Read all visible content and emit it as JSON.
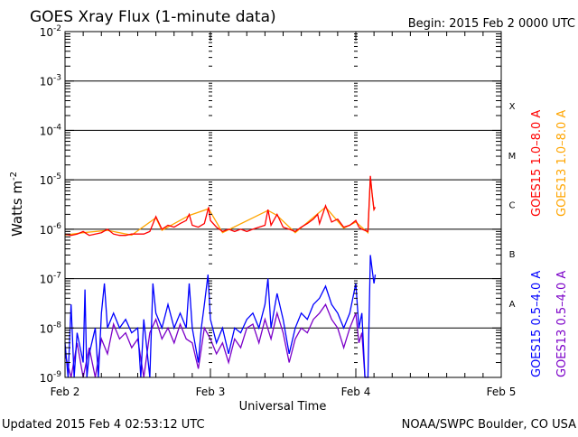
{
  "chart_data": {
    "type": "line",
    "title": "GOES Xray Flux (1-minute data)",
    "begin_label": "Begin:  2015 Feb 2 0000 UTC",
    "xlabel": "Universal Time",
    "ylabel": "Watts m",
    "ylabel_sup": "-2",
    "x_unit": "hours since 2015 Feb 2 0000 UTC",
    "xlim": [
      0,
      72
    ],
    "ylim": [
      1e-09,
      0.01
    ],
    "yscale": "log",
    "x_ticks": [
      {
        "v": 0,
        "label": "Feb 2"
      },
      {
        "v": 24,
        "label": "Feb 3"
      },
      {
        "v": 48,
        "label": "Feb 4"
      },
      {
        "v": 72,
        "label": "Feb 5"
      }
    ],
    "y_ticks": [
      {
        "exp": -2
      },
      {
        "exp": -3
      },
      {
        "exp": -4
      },
      {
        "exp": -5
      },
      {
        "exp": -6
      },
      {
        "exp": -7
      },
      {
        "exp": -8
      },
      {
        "exp": -9
      }
    ],
    "flare_classes": [
      {
        "label": "X",
        "exp": -4
      },
      {
        "label": "M",
        "exp": -5
      },
      {
        "label": "C",
        "exp": -6
      },
      {
        "label": "B",
        "exp": -7
      },
      {
        "label": "A",
        "exp": -8
      }
    ],
    "series": [
      {
        "name": "GOES13 1.0-8.0 A",
        "color": "#ffa500",
        "points": [
          [
            0,
            7.6e-07
          ],
          [
            3,
            8.5e-07
          ],
          [
            7,
            9.5e-07
          ],
          [
            11,
            7.6e-07
          ],
          [
            15,
            1.7e-06
          ],
          [
            16,
            9.5e-07
          ],
          [
            20.5,
            1.9e-06
          ],
          [
            23.7,
            2.6e-06
          ],
          [
            26,
            8.5e-07
          ],
          [
            33.5,
            2.4e-06
          ],
          [
            35,
            1.9e-06
          ],
          [
            38,
            8.5e-07
          ],
          [
            43,
            2.8e-06
          ],
          [
            46,
            1.05e-06
          ],
          [
            48,
            1.4e-06
          ],
          [
            50,
            8.5e-07
          ],
          [
            50.4,
            1.1e-05
          ],
          [
            51,
            2.4e-06
          ]
        ]
      },
      {
        "name": "GOES15 1.0-8.0 A",
        "color": "#ff0000",
        "points": [
          [
            0,
            8e-07
          ],
          [
            1,
            7.5e-07
          ],
          [
            2,
            8e-07
          ],
          [
            3,
            9e-07
          ],
          [
            4,
            7.5e-07
          ],
          [
            5,
            8e-07
          ],
          [
            6,
            8.5e-07
          ],
          [
            7,
            1e-06
          ],
          [
            8,
            8e-07
          ],
          [
            9,
            7.5e-07
          ],
          [
            10,
            7.5e-07
          ],
          [
            11,
            8e-07
          ],
          [
            12,
            8e-07
          ],
          [
            13,
            8e-07
          ],
          [
            14,
            9e-07
          ],
          [
            15,
            1.8e-06
          ],
          [
            16,
            1e-06
          ],
          [
            17,
            1.2e-06
          ],
          [
            18,
            1.1e-06
          ],
          [
            19,
            1.3e-06
          ],
          [
            20,
            1.5e-06
          ],
          [
            20.5,
            2e-06
          ],
          [
            21,
            1.2e-06
          ],
          [
            22,
            1.1e-06
          ],
          [
            23,
            1.3e-06
          ],
          [
            23.7,
            2.8e-06
          ],
          [
            24,
            1.5e-06
          ],
          [
            25,
            1.1e-06
          ],
          [
            26,
            9e-07
          ],
          [
            27,
            1e-06
          ],
          [
            28,
            9e-07
          ],
          [
            29,
            1e-06
          ],
          [
            30,
            9e-07
          ],
          [
            31,
            1e-06
          ],
          [
            32,
            1.1e-06
          ],
          [
            33,
            1.2e-06
          ],
          [
            33.5,
            2.5e-06
          ],
          [
            34,
            1.2e-06
          ],
          [
            35,
            2e-06
          ],
          [
            36,
            1.1e-06
          ],
          [
            37,
            1e-06
          ],
          [
            38,
            9e-07
          ],
          [
            39,
            1.1e-06
          ],
          [
            40,
            1.3e-06
          ],
          [
            41,
            1.6e-06
          ],
          [
            41.7,
            2e-06
          ],
          [
            42,
            1.3e-06
          ],
          [
            43,
            3e-06
          ],
          [
            44,
            1.4e-06
          ],
          [
            45,
            1.6e-06
          ],
          [
            46,
            1.1e-06
          ],
          [
            47,
            1.2e-06
          ],
          [
            48,
            1.5e-06
          ],
          [
            48.5,
            1.1e-06
          ],
          [
            49,
            1e-06
          ],
          [
            50,
            9e-07
          ],
          [
            50.4,
            1.2e-05
          ],
          [
            50.7,
            5e-06
          ],
          [
            51,
            2.5e-06
          ],
          [
            51.2,
            2.8e-06
          ]
        ]
      },
      {
        "name": "GOES13 0.5-4.0 A",
        "color": "#7b00c8",
        "points": [
          [
            0,
            3e-09
          ],
          [
            1,
            1e-09
          ],
          [
            2,
            5e-09
          ],
          [
            3,
            1e-09
          ],
          [
            4,
            4e-09
          ],
          [
            5,
            1e-09
          ],
          [
            6,
            6e-09
          ],
          [
            7,
            3e-09
          ],
          [
            8,
            1.2e-08
          ],
          [
            9,
            6e-09
          ],
          [
            10,
            8e-09
          ],
          [
            11,
            4e-09
          ],
          [
            12,
            6e-09
          ],
          [
            13,
            1e-09
          ],
          [
            14,
            8e-09
          ],
          [
            15,
            1.5e-08
          ],
          [
            16,
            6e-09
          ],
          [
            17,
            1e-08
          ],
          [
            18,
            5e-09
          ],
          [
            19,
            1.2e-08
          ],
          [
            20,
            6e-09
          ],
          [
            21,
            5e-09
          ],
          [
            22,
            1.5e-09
          ],
          [
            23,
            1e-08
          ],
          [
            24,
            6e-09
          ],
          [
            25,
            3e-09
          ],
          [
            26,
            5e-09
          ],
          [
            27,
            2e-09
          ],
          [
            28,
            6e-09
          ],
          [
            29,
            4e-09
          ],
          [
            30,
            1e-08
          ],
          [
            31,
            1.2e-08
          ],
          [
            32,
            5e-09
          ],
          [
            33,
            1.5e-08
          ],
          [
            34,
            6e-09
          ],
          [
            35,
            2e-08
          ],
          [
            36,
            8e-09
          ],
          [
            37,
            2e-09
          ],
          [
            38,
            6e-09
          ],
          [
            39,
            1e-08
          ],
          [
            40,
            8e-09
          ],
          [
            41,
            1.5e-08
          ],
          [
            42,
            2e-08
          ],
          [
            43,
            3e-08
          ],
          [
            44,
            1.5e-08
          ],
          [
            45,
            1e-08
          ],
          [
            46,
            4e-09
          ],
          [
            47,
            1e-08
          ],
          [
            48,
            2e-08
          ],
          [
            48.5,
            5e-09
          ],
          [
            49,
            8e-09
          ],
          [
            49.5,
            1e-09
          ],
          [
            50.2,
            1e-09
          ]
        ]
      },
      {
        "name": "GOES15 0.5-4.0 A",
        "color": "#0000ff",
        "points": [
          [
            0,
            5e-09
          ],
          [
            0.5,
            1e-09
          ],
          [
            1,
            3e-08
          ],
          [
            1.5,
            1e-09
          ],
          [
            2,
            8e-09
          ],
          [
            3,
            2e-09
          ],
          [
            3.3,
            6e-08
          ],
          [
            3.6,
            1e-09
          ],
          [
            4,
            3e-09
          ],
          [
            5,
            1e-08
          ],
          [
            5.5,
            1e-09
          ],
          [
            6,
            2e-08
          ],
          [
            6.5,
            8e-08
          ],
          [
            7,
            1e-08
          ],
          [
            8,
            2e-08
          ],
          [
            9,
            1e-08
          ],
          [
            10,
            1.5e-08
          ],
          [
            11,
            8e-09
          ],
          [
            12,
            1e-08
          ],
          [
            12.5,
            1e-09
          ],
          [
            13,
            1.5e-08
          ],
          [
            14,
            1e-09
          ],
          [
            14.5,
            8e-08
          ],
          [
            15,
            2e-08
          ],
          [
            16,
            1e-08
          ],
          [
            17,
            3e-08
          ],
          [
            18,
            1e-08
          ],
          [
            19,
            2e-08
          ],
          [
            20,
            1e-08
          ],
          [
            20.5,
            8e-08
          ],
          [
            21,
            1e-08
          ],
          [
            22,
            2e-09
          ],
          [
            22.5,
            1e-08
          ],
          [
            23,
            3e-08
          ],
          [
            23.6,
            1.2e-07
          ],
          [
            24,
            1.5e-08
          ],
          [
            25,
            5e-09
          ],
          [
            26,
            1e-08
          ],
          [
            27,
            3e-09
          ],
          [
            28,
            1e-08
          ],
          [
            29,
            8e-09
          ],
          [
            30,
            1.5e-08
          ],
          [
            31,
            2e-08
          ],
          [
            32,
            1e-08
          ],
          [
            33,
            3e-08
          ],
          [
            33.5,
            1e-07
          ],
          [
            34,
            1e-08
          ],
          [
            35,
            5e-08
          ],
          [
            36,
            1.5e-08
          ],
          [
            37,
            3e-09
          ],
          [
            38,
            1e-08
          ],
          [
            39,
            2e-08
          ],
          [
            40,
            1.5e-08
          ],
          [
            41,
            3e-08
          ],
          [
            42,
            4e-08
          ],
          [
            43,
            7e-08
          ],
          [
            44,
            3e-08
          ],
          [
            45,
            2e-08
          ],
          [
            46,
            1e-08
          ],
          [
            47,
            2e-08
          ],
          [
            48,
            8e-08
          ],
          [
            48.5,
            1e-08
          ],
          [
            49,
            2e-08
          ],
          [
            49.5,
            1e-09
          ],
          [
            50,
            1e-09
          ],
          [
            50.4,
            3e-07
          ],
          [
            50.7,
            1.5e-07
          ],
          [
            51,
            8e-08
          ],
          [
            51.2,
            1.2e-07
          ]
        ]
      }
    ],
    "legend": [
      {
        "label": "GOES15 1.0–8.0 A",
        "color": "#ff0000"
      },
      {
        "label": "GOES13 1.0–8.0 A",
        "color": "#ffa500"
      },
      {
        "label": "GOES15 0.5–4.0 A",
        "color": "#0000ff"
      },
      {
        "label": "GOES13 0.5–4.0 A",
        "color": "#7b00c8"
      }
    ],
    "legend_placement": "right"
  },
  "footer": {
    "updated": "Updated 2015 Feb  4 02:53:12 UTC",
    "source": "NOAA/SWPC Boulder, CO USA"
  }
}
